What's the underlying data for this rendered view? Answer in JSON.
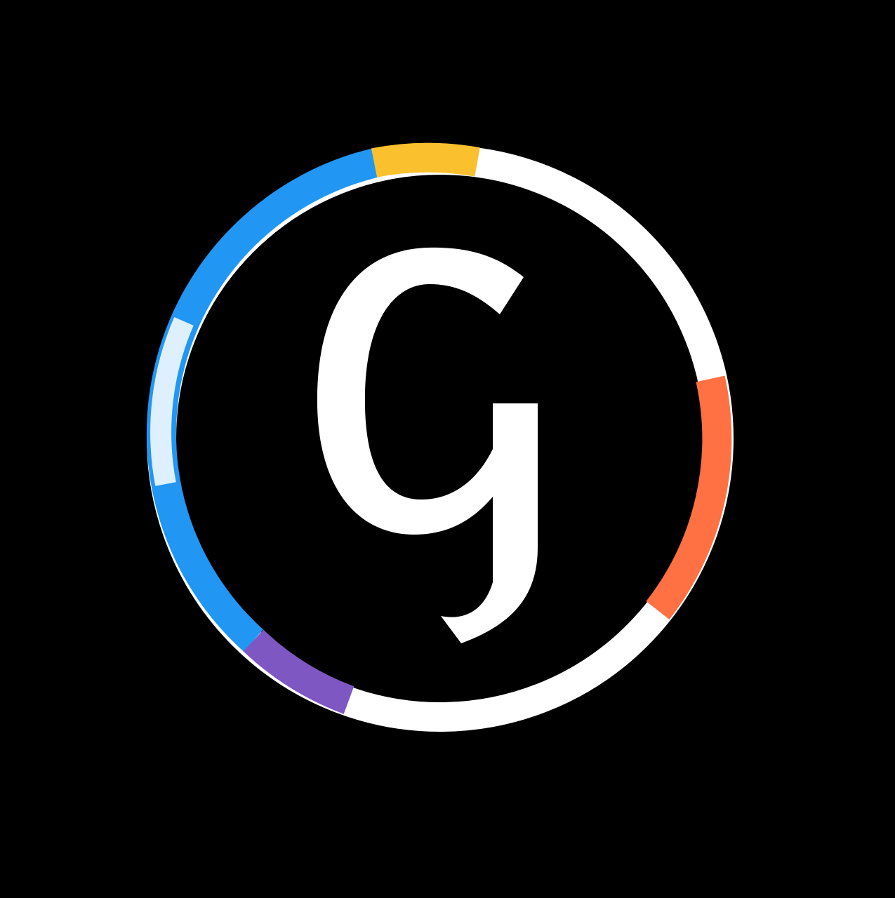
{
  "logo": {
    "letter": "g",
    "colors": {
      "background": "#000000",
      "ring": "#ffffff",
      "letter": "#ffffff",
      "blue": "#2196f3",
      "yellow": "#fbc02d",
      "orange": "#ff7043",
      "purple": "#7e57c2"
    }
  }
}
